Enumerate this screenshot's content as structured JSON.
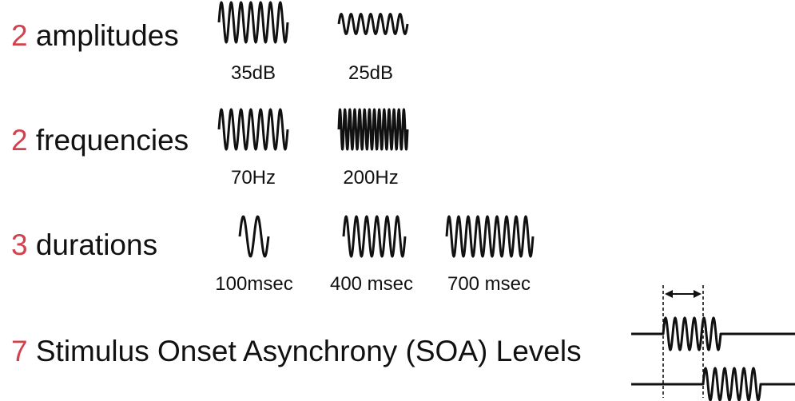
{
  "rows": [
    {
      "count": "2",
      "label": "amplitudes",
      "items": [
        {
          "label": "35dB",
          "amplitude": 1.0,
          "cycles": 7
        },
        {
          "label": "25dB",
          "amplitude": 0.5,
          "cycles": 7
        }
      ]
    },
    {
      "count": "2",
      "label": "frequencies",
      "items": [
        {
          "label": "70Hz",
          "amplitude": 1.0,
          "cycles": 7
        },
        {
          "label": "200Hz",
          "amplitude": 1.0,
          "cycles": 14
        }
      ]
    },
    {
      "count": "3",
      "label": "durations",
      "items": [
        {
          "label": "100msec",
          "amplitude": 1.0,
          "cycles": 2
        },
        {
          "label": "400 msec",
          "amplitude": 1.0,
          "cycles": 6
        },
        {
          "label": "700 msec",
          "amplitude": 1.0,
          "cycles": 9
        }
      ]
    },
    {
      "count": "7",
      "label": "Stimulus Onset Asynchrony (SOA) Levels",
      "items": []
    }
  ],
  "soa": {
    "cycles_per_burst": 6
  },
  "colors": {
    "accent": "#d4404d",
    "text": "#111111"
  }
}
